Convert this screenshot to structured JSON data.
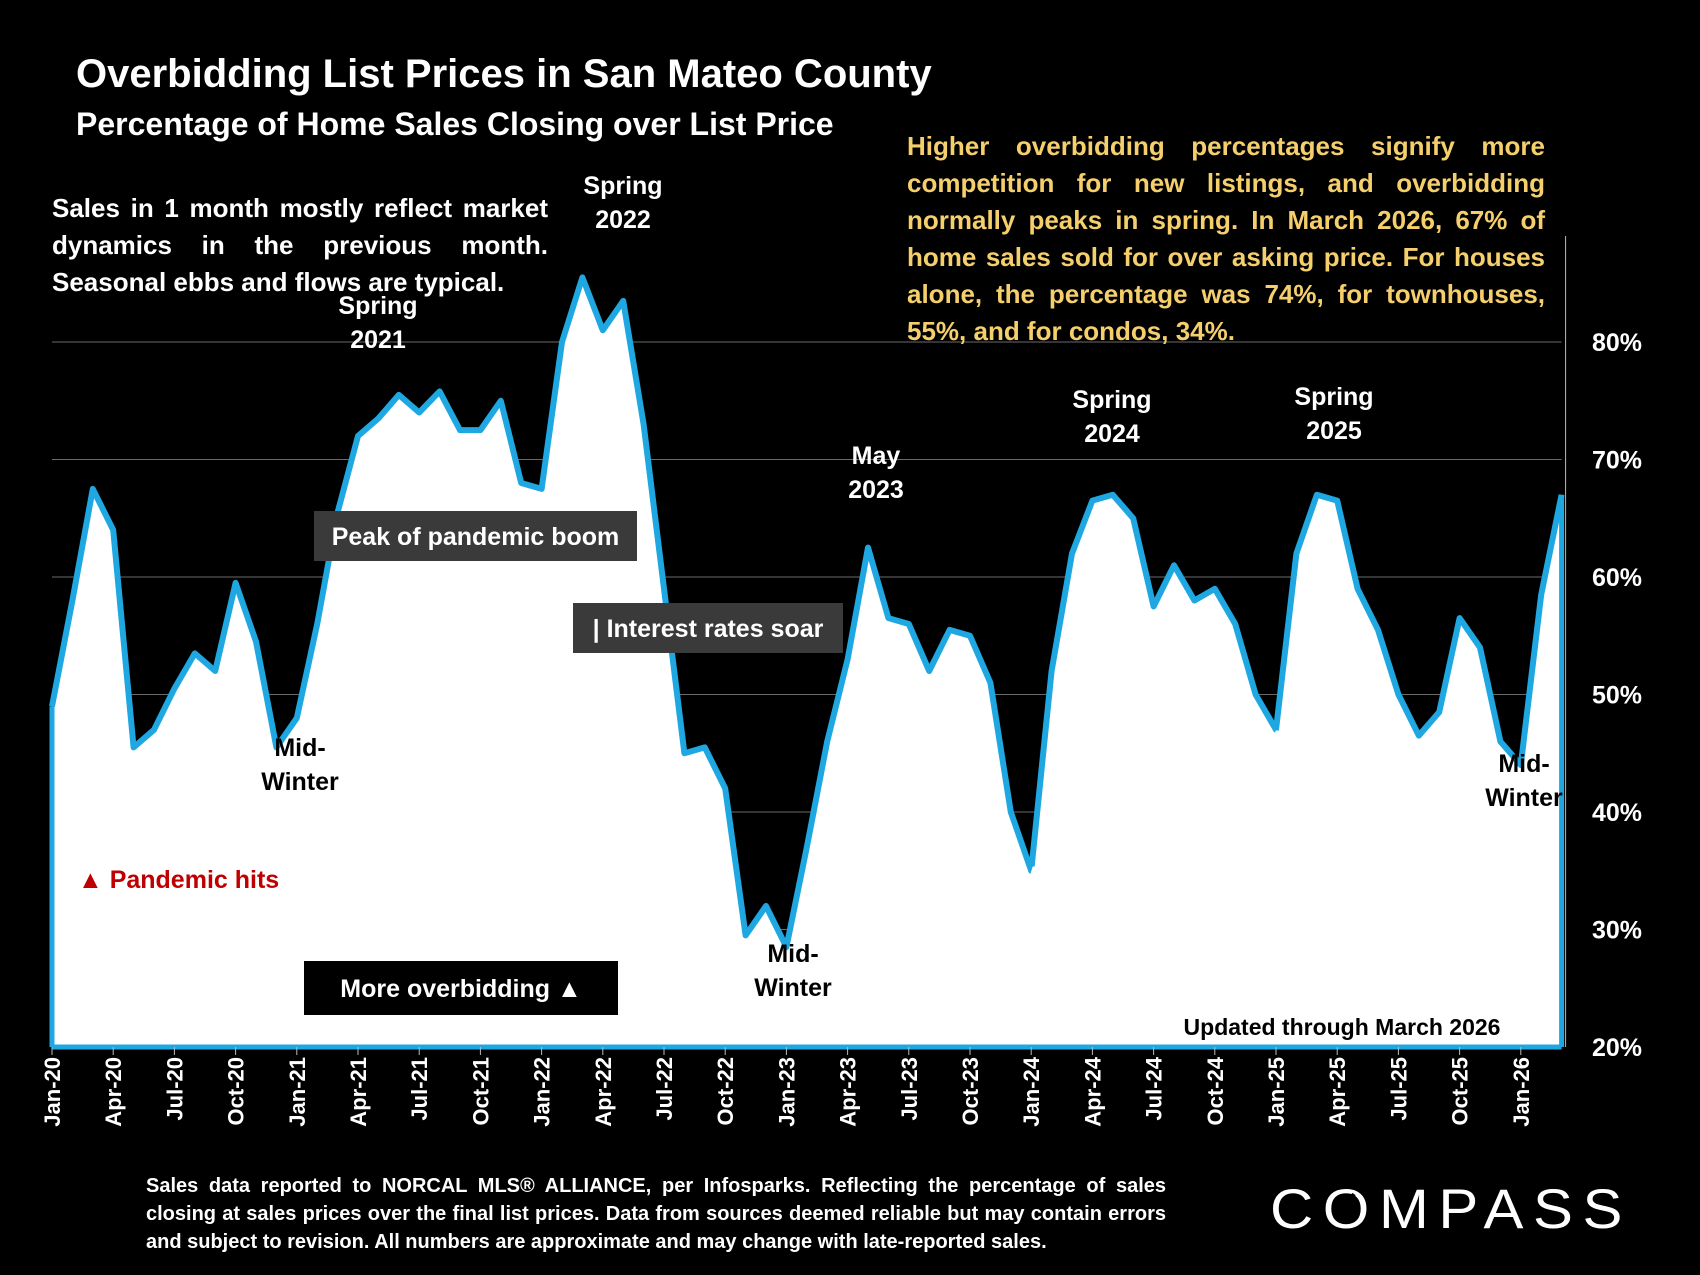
{
  "header": {
    "title": "Overbidding List Prices in San Mateo County",
    "subtitle": "Percentage of Home Sales Closing over List Price"
  },
  "notes": {
    "left": "Sales in 1 month mostly reflect market dynamics in the previous month. Seasonal ebbs and flows are typical.",
    "right": "Higher overbidding percentages signify more competition for new listings, and overbidding normally peaks in spring. In March 2026, 67% of home sales sold for over asking price. For houses alone, the percentage was 74%, for townhouses, 55%, and for condos, 34%."
  },
  "colors": {
    "line": "#1ea7e1",
    "area": "#ffffff",
    "background": "#000000",
    "note_right": "#f5cf6b",
    "pandemic": "#c00000",
    "label_box": "#3a3a3a"
  },
  "chart_data": {
    "type": "area",
    "ylim": [
      20,
      86
    ],
    "y_ticks": [
      "20%",
      "30%",
      "40%",
      "50%",
      "60%",
      "70%",
      "80%"
    ],
    "y_tick_values": [
      20,
      30,
      40,
      50,
      60,
      70,
      80
    ],
    "x_tick_labels": [
      "Jan-20",
      "Apr-20",
      "Jul-20",
      "Oct-20",
      "Jan-21",
      "Apr-21",
      "Jul-21",
      "Oct-21",
      "Jan-22",
      "Apr-22",
      "Jul-22",
      "Oct-22",
      "Jan-23",
      "Apr-23",
      "Jul-23",
      "Oct-23",
      "Jan-24",
      "Apr-24",
      "Jul-24",
      "Oct-24",
      "Jan-25",
      "Apr-25",
      "Jul-25",
      "Oct-25",
      "Jan-26"
    ],
    "x_start": "Jan-20",
    "x_end": "Mar-26",
    "grid": true,
    "series": [
      {
        "values": [
          49,
          58,
          67.5,
          64,
          45.5,
          47,
          50.5,
          53.5,
          52,
          59.5,
          54.5,
          45.5,
          48,
          56,
          65.5,
          72,
          73.5,
          75.5,
          74,
          75.8,
          72.5,
          72.5,
          75,
          68,
          67.5,
          80,
          85.5,
          81,
          83.5,
          73,
          59,
          45,
          45.5,
          42,
          29.5,
          32,
          28.5,
          37,
          46,
          53,
          62.5,
          56.5,
          56,
          52,
          55.5,
          55,
          51,
          40,
          35,
          52,
          62,
          66.5,
          67,
          65,
          57.5,
          61,
          58,
          59,
          56,
          50,
          47,
          62,
          67,
          66.5,
          59,
          55.5,
          50,
          46.5,
          48.5,
          56.5,
          54,
          46,
          44,
          58.5,
          67
        ]
      }
    ],
    "annotations": [
      {
        "text": "Spring 2021",
        "lines": [
          "Spring",
          "2021"
        ]
      },
      {
        "text": "Spring 2022",
        "lines": [
          "Spring",
          "2022"
        ]
      },
      {
        "text": "May 2023",
        "lines": [
          "May",
          "2023"
        ]
      },
      {
        "text": "Spring 2024",
        "lines": [
          "Spring",
          "2024"
        ]
      },
      {
        "text": "Spring 2025",
        "lines": [
          "Spring",
          "2025"
        ]
      },
      {
        "text": "Mid-Winter",
        "lines": [
          "Mid-",
          "Winter"
        ]
      },
      {
        "text": "Mid-Winter",
        "lines": [
          "Mid-",
          "Winter"
        ]
      },
      {
        "text": "Mid-Winter",
        "lines": [
          "Mid-",
          "Winter"
        ]
      },
      {
        "text": "Mid-Winter",
        "lines": [
          "Mid-",
          "Winter"
        ]
      },
      {
        "text": "Mid-Winter",
        "lines": [
          "Mid-",
          "Winter"
        ]
      }
    ],
    "boxes": {
      "peak": "Peak of pandemic boom",
      "rates": "| Interest rates soar",
      "more": "More overbidding ▲"
    },
    "pandemic": "▲ Pandemic hits",
    "updated": "Updated through March 2026"
  },
  "footer": "Sales data reported to NORCAL MLS® ALLIANCE, per Infosparks. Reflecting the percentage of sales closing at sales prices over the final list prices. Data from sources deemed reliable but may contain errors and subject to revision. All numbers are approximate and may change with late-reported sales.",
  "logo": "COMPASS"
}
